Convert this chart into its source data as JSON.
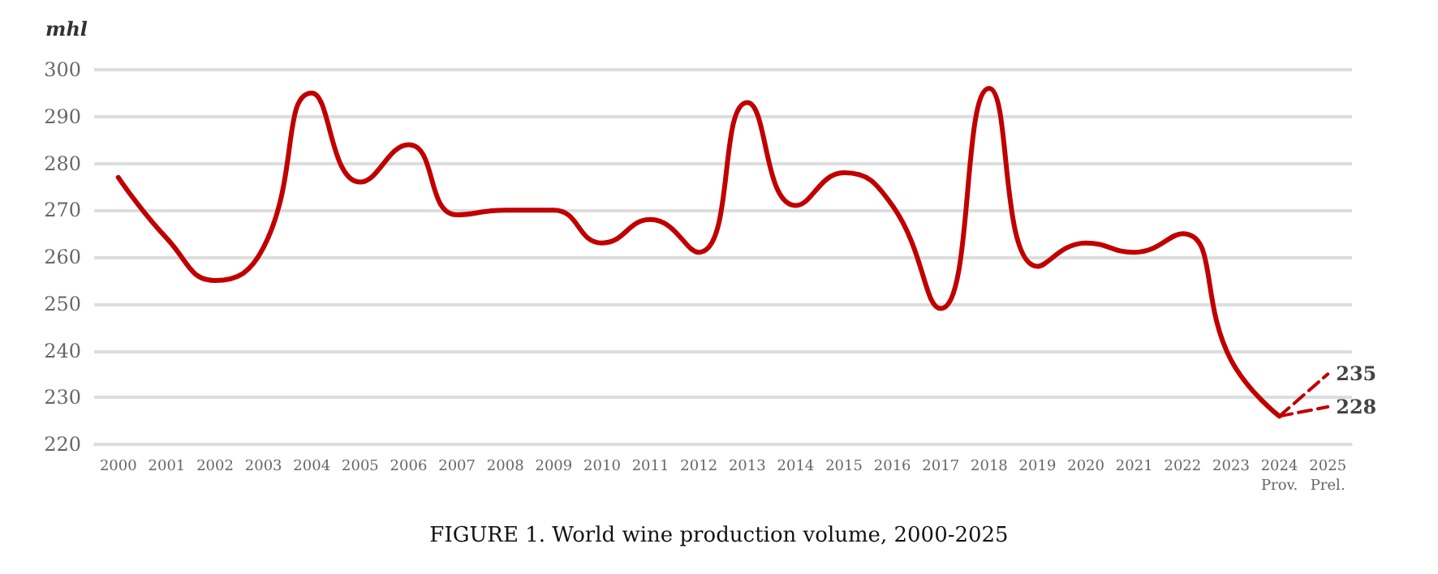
{
  "chart_data": {
    "type": "line",
    "title": "FIGURE 1. World wine production volume, 2000-2025",
    "ylabel": "mhl",
    "categories": [
      "2000",
      "2001",
      "2002",
      "2003",
      "2004",
      "2005",
      "2006",
      "2007",
      "2008",
      "2009",
      "2010",
      "2011",
      "2012",
      "2013",
      "2014",
      "2015",
      "2016",
      "2017",
      "2018",
      "2019",
      "2020",
      "2021",
      "2022",
      "2023",
      "2024\nProv.",
      "2025\nPrel."
    ],
    "series": [
      {
        "color": "#c00000",
        "line_style": "solid",
        "values": [
          277,
          264,
          255,
          262,
          295,
          276,
          284,
          269,
          270,
          270,
          263,
          268,
          261,
          293,
          271,
          278,
          271,
          249,
          296,
          258,
          263,
          261,
          265,
          238,
          226,
          null
        ]
      },
      {
        "color": "#c00000",
        "line_style": "dashed",
        "values": [
          null,
          null,
          null,
          null,
          null,
          null,
          null,
          null,
          null,
          null,
          null,
          null,
          null,
          null,
          null,
          null,
          null,
          null,
          null,
          null,
          null,
          null,
          null,
          null,
          226,
          235
        ],
        "value_labels": [
          null,
          null,
          null,
          null,
          null,
          null,
          null,
          null,
          null,
          null,
          null,
          null,
          null,
          null,
          null,
          null,
          null,
          null,
          null,
          null,
          null,
          null,
          null,
          null,
          null,
          "235"
        ]
      },
      {
        "color": "#c00000",
        "line_style": "dashed",
        "values": [
          null,
          null,
          null,
          null,
          null,
          null,
          null,
          null,
          null,
          null,
          null,
          null,
          null,
          null,
          null,
          null,
          null,
          null,
          null,
          null,
          null,
          null,
          null,
          null,
          226,
          228
        ],
        "value_labels": [
          null,
          null,
          null,
          null,
          null,
          null,
          null,
          null,
          null,
          null,
          null,
          null,
          null,
          null,
          null,
          null,
          null,
          null,
          null,
          null,
          null,
          null,
          null,
          null,
          null,
          "228"
        ]
      }
    ],
    "ylim": [
      220,
      300
    ],
    "yticks": [
      220,
      230,
      240,
      250,
      260,
      270,
      280,
      290,
      300
    ],
    "grid": "y",
    "marker": "none"
  }
}
